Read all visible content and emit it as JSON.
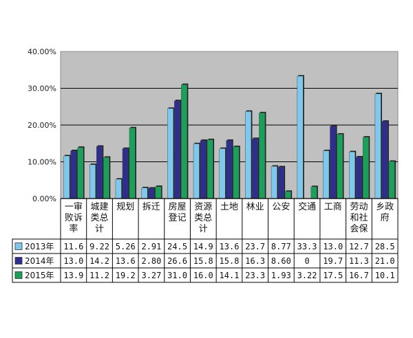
{
  "chart_data": {
    "type": "bar",
    "categories": [
      [
        "一审",
        "败诉",
        "率"
      ],
      [
        "城建",
        "类总",
        "计"
      ],
      [
        "规划"
      ],
      [
        "拆迁"
      ],
      [
        "房屋",
        "登记"
      ],
      [
        "资源",
        "类总",
        "计"
      ],
      [
        "土地"
      ],
      [
        "林业"
      ],
      [
        "公安"
      ],
      [
        "交通"
      ],
      [
        "工商"
      ],
      [
        "劳动",
        "和社",
        "会保"
      ],
      [
        "乡政",
        "府"
      ]
    ],
    "series": [
      {
        "name": "2013年",
        "color": "#7ec8ee",
        "values": [
          11.6,
          9.22,
          5.26,
          2.91,
          24.5,
          14.9,
          13.6,
          23.7,
          8.77,
          33.3,
          13.0,
          12.7,
          28.5
        ],
        "labels": [
          "11.6",
          "9.22",
          "5.26",
          "2.91",
          "24.5",
          "14.9",
          "13.6",
          "23.7",
          "8.77",
          "33.3",
          "13.0",
          "12.7",
          "28.5"
        ]
      },
      {
        "name": "2014年",
        "color": "#2e2e8c",
        "values": [
          13.0,
          14.2,
          13.6,
          2.8,
          26.6,
          15.8,
          15.8,
          16.3,
          8.6,
          0,
          19.7,
          11.3,
          21.0
        ],
        "labels": [
          "13.0",
          "14.2",
          "13.6",
          "2.80",
          "26.6",
          "15.8",
          "15.8",
          "16.3",
          "8.60",
          "0",
          "19.7",
          "11.3",
          "21.0"
        ]
      },
      {
        "name": "2015年",
        "color": "#1aa05a",
        "values": [
          13.9,
          11.2,
          19.2,
          3.27,
          31.0,
          16.0,
          14.1,
          23.3,
          1.93,
          3.22,
          17.5,
          16.7,
          10.1
        ],
        "labels": [
          "13.9",
          "11.2",
          "19.2",
          "3.27",
          "31.0",
          "16.0",
          "14.1",
          "23.3",
          "1.93",
          "3.22",
          "17.5",
          "16.7",
          "10.1"
        ]
      }
    ],
    "ylim": [
      0,
      40
    ],
    "yticks": [
      "0.00%",
      "10.00%",
      "20.00%",
      "30.00%",
      "40.00%"
    ],
    "ytick_values": [
      0,
      10,
      20,
      30,
      40
    ],
    "grid": true,
    "plot_background": "#c0c0c0",
    "legend": "data-table-left",
    "title": "",
    "xlabel": "",
    "ylabel": ""
  }
}
